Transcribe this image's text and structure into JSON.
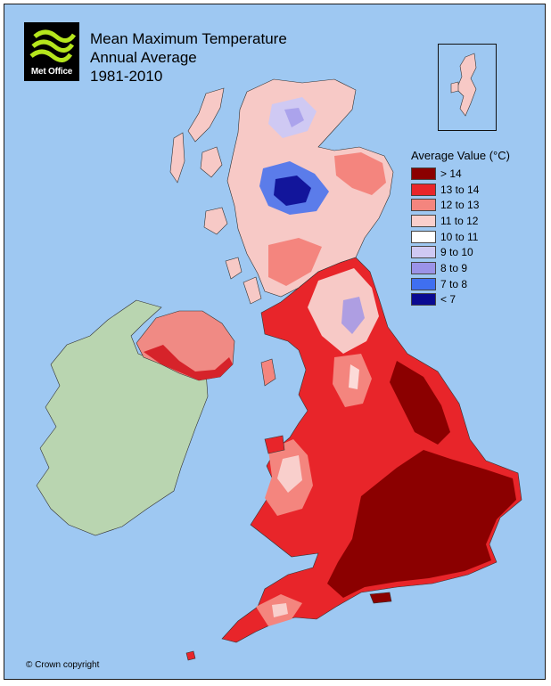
{
  "title": {
    "line1": "Mean Maximum Temperature",
    "line2": "Annual Average",
    "line3": "1981-2010"
  },
  "logo": {
    "label": "Met Office"
  },
  "legend": {
    "title": "Average Value (°C)",
    "items": [
      {
        "label": "> 14",
        "color": "#8b0000"
      },
      {
        "label": "13 to 14",
        "color": "#e8252a"
      },
      {
        "label": "12 to 13",
        "color": "#f4857e"
      },
      {
        "label": "11 to 12",
        "color": "#f9cfcc"
      },
      {
        "label": "10 to 11",
        "color": "#ffffff"
      },
      {
        "label": "9 to 10",
        "color": "#cfc9f3"
      },
      {
        "label": "8 to 9",
        "color": "#9b93e8"
      },
      {
        "label": "7 to 8",
        "color": "#3f6ff0"
      },
      {
        "label": "< 7",
        "color": "#0a0a92"
      }
    ]
  },
  "copyright": "© Crown copyright",
  "colors": {
    "sea": "#9ec8f2",
    "ireland_land": "#b9d5b0"
  }
}
